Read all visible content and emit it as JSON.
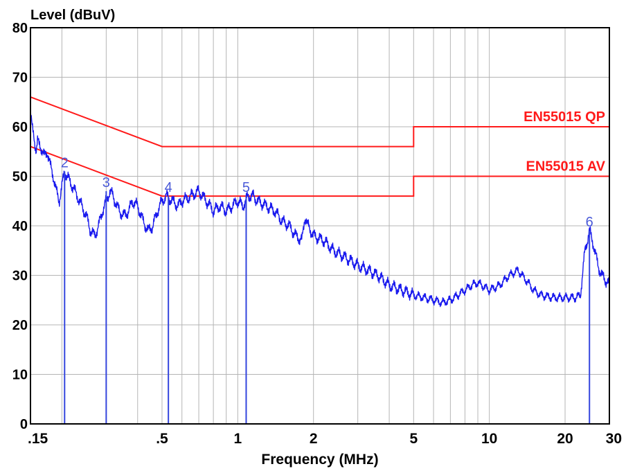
{
  "chart_data": {
    "type": "line",
    "ylabel": "Level (dBuV)",
    "xlabel": "Frequency (MHz)",
    "x_scale": "log",
    "xlim": [
      0.15,
      30
    ],
    "ylim": [
      0,
      80
    ],
    "grid": true,
    "y_ticks": [
      0,
      10,
      20,
      30,
      40,
      50,
      60,
      70,
      80
    ],
    "x_ticks": [
      {
        "value": 0.15,
        "label": ".15"
      },
      {
        "value": 0.5,
        "label": ".5"
      },
      {
        "value": 1,
        "label": "1"
      },
      {
        "value": 2,
        "label": "2"
      },
      {
        "value": 5,
        "label": "5"
      },
      {
        "value": 10,
        "label": "10"
      },
      {
        "value": 20,
        "label": "20"
      },
      {
        "value": 30,
        "label": "30"
      }
    ],
    "limit_lines": [
      {
        "label": "EN55015 QP",
        "color": "#ff1a1a",
        "points": [
          [
            0.15,
            66
          ],
          [
            0.5,
            56
          ],
          [
            5,
            56
          ],
          [
            5,
            60
          ],
          [
            30,
            60
          ]
        ]
      },
      {
        "label": "EN55015 AV",
        "color": "#ff1a1a",
        "points": [
          [
            0.15,
            56
          ],
          [
            0.5,
            46
          ],
          [
            5,
            46
          ],
          [
            5,
            50
          ],
          [
            30,
            50
          ]
        ]
      }
    ],
    "series": [
      {
        "color": "#1a1aee",
        "points": [
          [
            0.15,
            63
          ],
          [
            0.152,
            60
          ],
          [
            0.155,
            58
          ],
          [
            0.158,
            55
          ],
          [
            0.16,
            57
          ],
          [
            0.165,
            56
          ],
          [
            0.17,
            54
          ],
          [
            0.175,
            55
          ],
          [
            0.18,
            52
          ],
          [
            0.185,
            50
          ],
          [
            0.19,
            47
          ],
          [
            0.195,
            45
          ],
          [
            0.2,
            48
          ],
          [
            0.205,
            51
          ],
          [
            0.21,
            50
          ],
          [
            0.22,
            48
          ],
          [
            0.23,
            46
          ],
          [
            0.24,
            44
          ],
          [
            0.25,
            42
          ],
          [
            0.26,
            39
          ],
          [
            0.27,
            38
          ],
          [
            0.28,
            40
          ],
          [
            0.29,
            43
          ],
          [
            0.3,
            45
          ],
          [
            0.31,
            47
          ],
          [
            0.32,
            46
          ],
          [
            0.33,
            44
          ],
          [
            0.35,
            42
          ],
          [
            0.37,
            43
          ],
          [
            0.38,
            45
          ],
          [
            0.4,
            44
          ],
          [
            0.42,
            41
          ],
          [
            0.44,
            39
          ],
          [
            0.46,
            40
          ],
          [
            0.48,
            43
          ],
          [
            0.5,
            45
          ],
          [
            0.52,
            46
          ],
          [
            0.55,
            45
          ],
          [
            0.58,
            44
          ],
          [
            0.6,
            45
          ],
          [
            0.65,
            46
          ],
          [
            0.7,
            47
          ],
          [
            0.75,
            45
          ],
          [
            0.8,
            43
          ],
          [
            0.85,
            44
          ],
          [
            0.9,
            43
          ],
          [
            0.95,
            44
          ],
          [
            1,
            45
          ],
          [
            1.05,
            44
          ],
          [
            1.1,
            46
          ],
          [
            1.15,
            46
          ],
          [
            1.2,
            45
          ],
          [
            1.3,
            44
          ],
          [
            1.4,
            43
          ],
          [
            1.5,
            41
          ],
          [
            1.6,
            40
          ],
          [
            1.7,
            38
          ],
          [
            1.8,
            37
          ],
          [
            1.85,
            42
          ],
          [
            1.9,
            40
          ],
          [
            2,
            38
          ],
          [
            2.2,
            37
          ],
          [
            2.4,
            35
          ],
          [
            2.6,
            34
          ],
          [
            2.8,
            33
          ],
          [
            3,
            32
          ],
          [
            3.3,
            31
          ],
          [
            3.6,
            30
          ],
          [
            4,
            28
          ],
          [
            4.5,
            27
          ],
          [
            5,
            26
          ],
          [
            5.5,
            25.5
          ],
          [
            6,
            25
          ],
          [
            6.5,
            24.5
          ],
          [
            7,
            25
          ],
          [
            7.5,
            26
          ],
          [
            8,
            27
          ],
          [
            8.5,
            28
          ],
          [
            9,
            28.5
          ],
          [
            10,
            27
          ],
          [
            11,
            28
          ],
          [
            12,
            30
          ],
          [
            13,
            31
          ],
          [
            14,
            29
          ],
          [
            15,
            27
          ],
          [
            16,
            26
          ],
          [
            18,
            25.5
          ],
          [
            20,
            25.5
          ],
          [
            22,
            25.5
          ],
          [
            23,
            26
          ],
          [
            24,
            35
          ],
          [
            25,
            39
          ],
          [
            26,
            36
          ],
          [
            27,
            32
          ],
          [
            28,
            30
          ],
          [
            29,
            29
          ],
          [
            30,
            28
          ]
        ]
      }
    ],
    "markers": [
      {
        "label": "2",
        "x": 0.205,
        "y": 51
      },
      {
        "label": "3",
        "x": 0.3,
        "y": 47
      },
      {
        "label": "4",
        "x": 0.53,
        "y": 46
      },
      {
        "label": "5",
        "x": 1.08,
        "y": 46
      },
      {
        "label": "6",
        "x": 25,
        "y": 39
      }
    ]
  }
}
